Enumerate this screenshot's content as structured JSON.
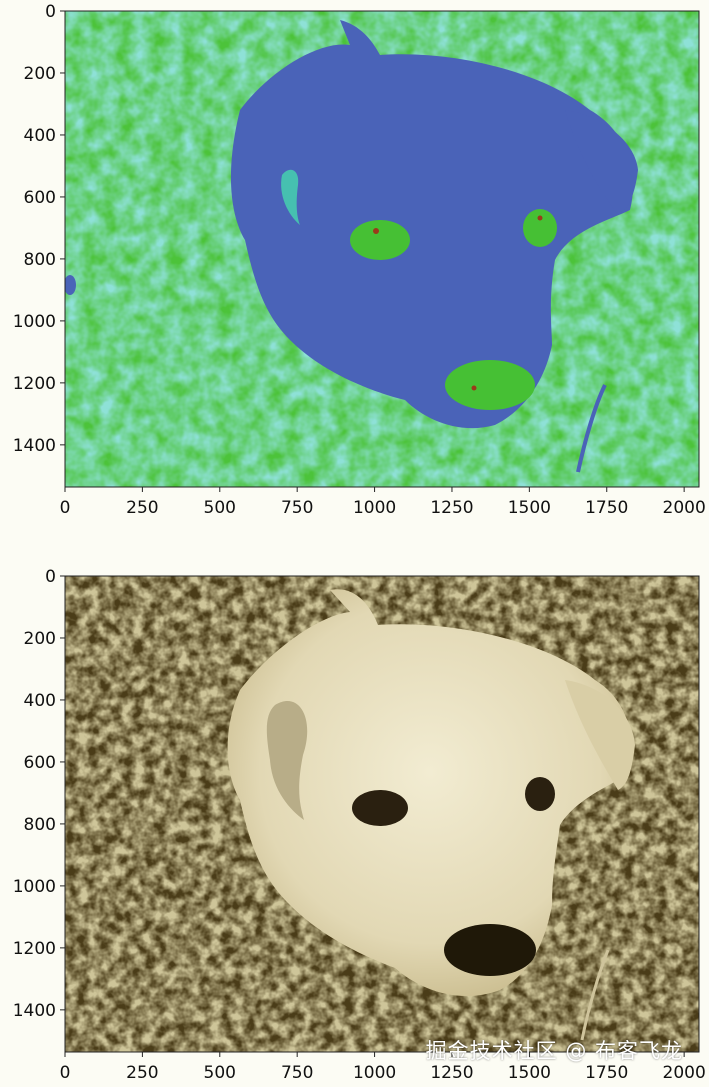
{
  "chart_data": [
    {
      "type": "heatmap",
      "subject": "puppy head in grass, false-color colormap",
      "title": "",
      "xlabel": "",
      "ylabel": "",
      "xlim": [
        0,
        2048
      ],
      "ylim": [
        1536,
        0
      ],
      "x_ticks": [
        0,
        250,
        500,
        750,
        1000,
        1250,
        1500,
        1750,
        2000
      ],
      "y_ticks": [
        0,
        200,
        400,
        600,
        800,
        1000,
        1200,
        1400
      ],
      "colors": {
        "background": "#4cc33a",
        "mid": "#46c0b0",
        "subject": "#4a63b8",
        "eye": "#46c034"
      },
      "grid": false
    },
    {
      "type": "heatmap",
      "subject": "puppy head in grass, sepia colormap",
      "title": "",
      "xlabel": "",
      "ylabel": "",
      "xlim": [
        0,
        2048
      ],
      "ylim": [
        1536,
        0
      ],
      "x_ticks": [
        0,
        250,
        500,
        750,
        1000,
        1250,
        1500,
        1750,
        2000
      ],
      "y_ticks": [
        0,
        200,
        400,
        600,
        800,
        1000,
        1200,
        1400
      ],
      "colors": {
        "background": "#4a3c18",
        "mid": "#8a7c48",
        "subject": "#e8e0c0",
        "eye": "#2a2010"
      },
      "grid": false
    }
  ],
  "watermark": "掘金技术社区 @ 布客飞龙"
}
